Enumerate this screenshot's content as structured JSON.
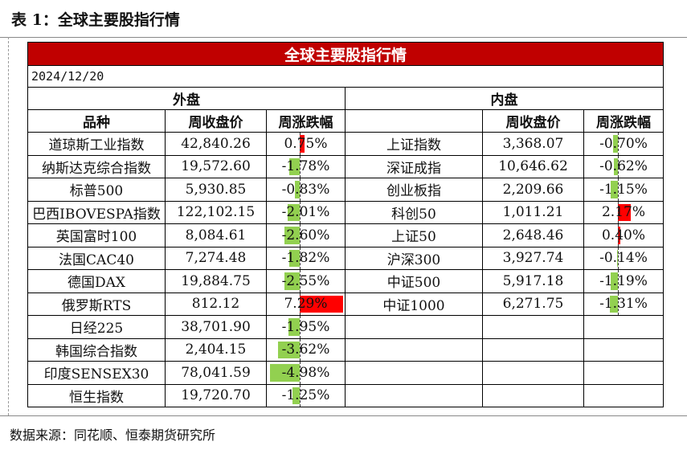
{
  "caption": "表 1：全球主要股指行情",
  "table": {
    "title": "全球主要股指行情",
    "date": "2024/12/20",
    "overseas_label": "外盘",
    "domestic_label": "内盘",
    "col_variety": "品种",
    "col_close": "周收盘价",
    "col_change": "周涨跌幅",
    "overseas": [
      {
        "name": "道琼斯工业指数",
        "close": "42,840.26",
        "change": "0.75%",
        "value": 0.75
      },
      {
        "name": "纳斯达克综合指数",
        "close": "19,572.60",
        "change": "-1.78%",
        "value": -1.78
      },
      {
        "name": "标普500",
        "close": "5,930.85",
        "change": "-0.83%",
        "value": -0.83
      },
      {
        "name": "巴西IBOVESPA指数",
        "close": "122,102.15",
        "change": "-2.01%",
        "value": -2.01
      },
      {
        "name": "英国富时100",
        "close": "8,084.61",
        "change": "-2.60%",
        "value": -2.6
      },
      {
        "name": "法国CAC40",
        "close": "7,274.48",
        "change": "-1.82%",
        "value": -1.82
      },
      {
        "name": "德国DAX",
        "close": "19,884.75",
        "change": "-2.55%",
        "value": -2.55
      },
      {
        "name": "俄罗斯RTS",
        "close": "812.12",
        "change": "7.29%",
        "value": 7.29
      },
      {
        "name": "日经225",
        "close": "38,701.90",
        "change": "-1.95%",
        "value": -1.95
      },
      {
        "name": "韩国综合指数",
        "close": "2,404.15",
        "change": "-3.62%",
        "value": -3.62
      },
      {
        "name": "印度SENSEX30",
        "close": "78,041.59",
        "change": "-4.98%",
        "value": -4.98
      },
      {
        "name": "恒生指数",
        "close": "19,720.70",
        "change": "-1.25%",
        "value": -1.25
      }
    ],
    "domestic": [
      {
        "name": "上证指数",
        "close": "3,368.07",
        "change": "-0.70%",
        "value": -0.7
      },
      {
        "name": "深证成指",
        "close": "10,646.62",
        "change": "-0.62%",
        "value": -0.62
      },
      {
        "name": "创业板指",
        "close": "2,209.66",
        "change": "-1.15%",
        "value": -1.15
      },
      {
        "name": "科创50",
        "close": "1,011.21",
        "change": "2.17%",
        "value": 2.17
      },
      {
        "name": "上证50",
        "close": "2,648.46",
        "change": "0.40%",
        "value": 0.4
      },
      {
        "name": "沪深300",
        "close": "3,927.74",
        "change": "-0.14%",
        "value": -0.14
      },
      {
        "name": "中证500",
        "close": "5,917.18",
        "change": "-1.19%",
        "value": -1.19
      },
      {
        "name": "中证1000",
        "close": "6,271.75",
        "change": "-1.31%",
        "value": -1.31
      }
    ]
  },
  "colors": {
    "title_bg": "#c00000",
    "positive": "#ff0000",
    "negative": "#92d050"
  },
  "source": "数据来源：同花顺、恒泰期货研究所"
}
